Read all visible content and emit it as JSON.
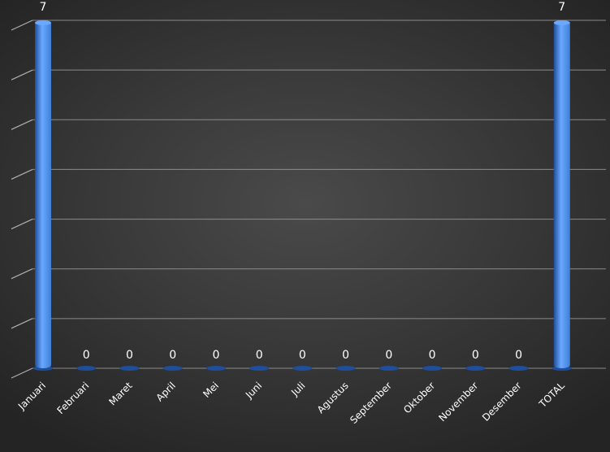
{
  "chart_data": {
    "type": "bar",
    "categories": [
      "Januari",
      "Februari",
      "Maret",
      "April",
      "Mei",
      "Juni",
      "Juli",
      "Agustus",
      "September",
      "Oktober",
      "November",
      "Desember",
      "TOTAL"
    ],
    "values": [
      7,
      0,
      0,
      0,
      0,
      0,
      0,
      0,
      0,
      0,
      0,
      0,
      7
    ],
    "data_labels": [
      "7",
      "0",
      "0",
      "0",
      "0",
      "0",
      "0",
      "0",
      "0",
      "0",
      "0",
      "0",
      "7"
    ],
    "ylim": [
      0,
      7
    ],
    "y_ticks_count": 8,
    "grid": true,
    "legend": "none",
    "bar_color": "#3f7fd6",
    "bar_highlight_color": "#6aa8ff",
    "bar_shadow_color": "#1f4f9a"
  }
}
